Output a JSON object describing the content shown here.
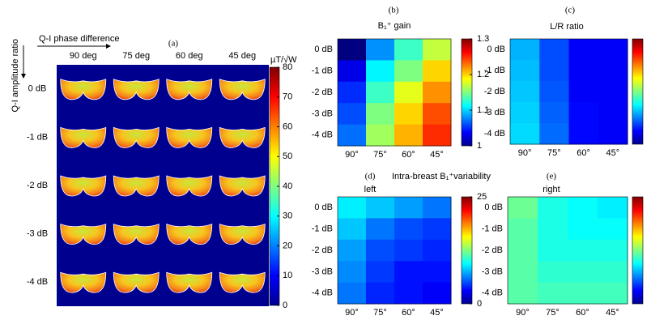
{
  "chart_data": [
    {
      "type": "image-grid",
      "label": "(a)",
      "x_label": "Q-I phase difference",
      "y_label": "Q-I amplitude ratio",
      "columns": [
        "90 deg",
        "75 deg",
        "60 deg",
        "45 deg"
      ],
      "rows": [
        "0 dB",
        "-1 dB",
        "-2 dB",
        "-3 dB",
        "-4 dB"
      ],
      "colorbar_label": "µT/√W",
      "zlim": [
        0,
        80
      ],
      "zticks": [
        0,
        10,
        20,
        30,
        40,
        50,
        60,
        70,
        80
      ]
    },
    {
      "type": "heatmap",
      "label": "(b)",
      "title": "B₁⁺ gain",
      "categories": [
        "90°",
        "75°",
        "60°",
        "45°"
      ],
      "rows": [
        "0 dB",
        "-1 dB",
        "-2 dB",
        "-3 dB",
        "-4 dB"
      ],
      "values": [
        [
          1.0,
          1.08,
          1.13,
          1.17
        ],
        [
          1.03,
          1.11,
          1.15,
          1.2
        ],
        [
          1.05,
          1.13,
          1.18,
          1.22
        ],
        [
          1.06,
          1.15,
          1.2,
          1.24
        ],
        [
          1.07,
          1.16,
          1.21,
          1.25
        ]
      ],
      "zlim": [
        1,
        1.3
      ],
      "zticks": [
        1,
        1.1,
        1.2,
        1.3
      ]
    },
    {
      "type": "heatmap",
      "label": "(c)",
      "title": "L/R ratio",
      "categories": [
        "90°",
        "75°",
        "60°",
        "45°"
      ],
      "rows": [
        "0 dB",
        "-1 dB",
        "-2 dB",
        "-3 dB",
        "-4 dB"
      ],
      "values": [
        [
          0.3,
          0.2,
          0.12,
          0.12
        ],
        [
          0.31,
          0.2,
          0.12,
          0.12
        ],
        [
          0.32,
          0.21,
          0.12,
          0.12
        ],
        [
          0.33,
          0.22,
          0.13,
          0.12
        ],
        [
          0.34,
          0.23,
          0.13,
          0.12
        ]
      ],
      "zlim": [
        0,
        1
      ]
    },
    {
      "type": "heatmap",
      "label": "(d)",
      "title": "Intra-breast B₁⁺variability",
      "subtitle": "left",
      "categories": [
        "90°",
        "75°",
        "60°",
        "45°"
      ],
      "rows": [
        "0 dB",
        "-1 dB",
        "-2 dB",
        "-3 dB",
        "-4 dB"
      ],
      "values": [
        [
          9,
          8,
          7,
          6
        ],
        [
          8,
          6,
          5,
          4.5
        ],
        [
          7,
          5,
          4.5,
          4
        ],
        [
          6.5,
          4.5,
          3.5,
          3.5
        ],
        [
          6,
          4,
          3.5,
          3
        ]
      ],
      "zlim": [
        0,
        25
      ],
      "zticks": [
        0,
        25
      ]
    },
    {
      "type": "heatmap",
      "label": "(e)",
      "subtitle": "right",
      "categories": [
        "90°",
        "75°",
        "60°",
        "45°"
      ],
      "rows": [
        "0 dB",
        "-1 dB",
        "-2 dB",
        "-3 dB",
        "-4 dB"
      ],
      "values": [
        [
          12,
          10,
          9.5,
          9
        ],
        [
          11.5,
          10,
          9.5,
          9.5
        ],
        [
          11.5,
          10,
          10,
          10
        ],
        [
          11.5,
          10.5,
          10.5,
          10.5
        ],
        [
          11.5,
          11,
          11,
          11
        ]
      ],
      "zlim": [
        0,
        25
      ]
    }
  ]
}
